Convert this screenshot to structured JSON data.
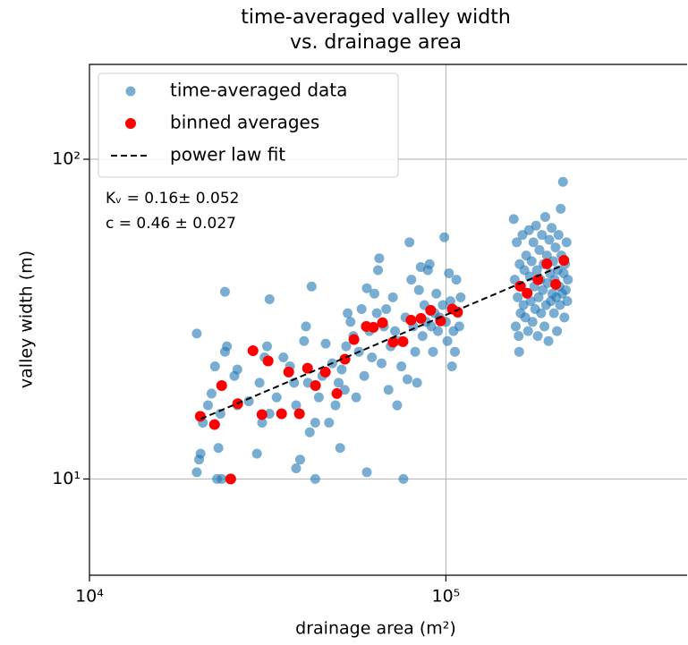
{
  "chart_data": {
    "type": "scatter",
    "title": [
      "time-averaged valley width",
      "vs. drainage area"
    ],
    "xlabel": "drainage area (m²)",
    "ylabel": "valley width (m)",
    "xscale": "log",
    "yscale": "log",
    "xlim": [
      10000,
      475000
    ],
    "ylim": [
      5,
      198
    ],
    "xticks": [
      {
        "value": 10000,
        "label": "10⁴"
      },
      {
        "value": 100000,
        "label": "10⁵"
      }
    ],
    "yticks": [
      {
        "value": 10,
        "label": "10¹"
      },
      {
        "value": 100,
        "label": "10²"
      }
    ],
    "grid": true,
    "legend": "upper left",
    "annotations": [
      "Kᵥ = 0.16± 0.052",
      "c = 0.46 ± 0.027"
    ],
    "series": [
      {
        "name": "time-averaged data",
        "color": "#1f77b4",
        "marker": "circle",
        "x": [
          20000,
          20000,
          20300,
          20500,
          20800,
          21500,
          22000,
          22500,
          22800,
          23000,
          23300,
          23500,
          24000,
          24000,
          24300,
          25000,
          25500,
          26000,
          26000,
          28000,
          29500,
          30000,
          30500,
          31000,
          31500,
          32000,
          32000,
          33500,
          35000,
          36500,
          37500,
          38000,
          38000,
          39000,
          40000,
          40500,
          41000,
          41500,
          42000,
          43000,
          43000,
          44000,
          45000,
          46000,
          47000,
          48000,
          49000,
          50000,
          50500,
          51000,
          52000,
          52500,
          53000,
          54000,
          55000,
          56000,
          57000,
          58000,
          59000,
          60000,
          60000,
          61000,
          62000,
          63000,
          64000,
          64500,
          65000,
          66000,
          67000,
          68000,
          69000,
          70000,
          71000,
          72000,
          73000,
          74000,
          75000,
          76000,
          77000,
          78000,
          79000,
          80000,
          81000,
          82000,
          83000,
          84000,
          85000,
          86000,
          87000,
          88000,
          89000,
          90000,
          91000,
          92000,
          93000,
          94000,
          95000,
          96000,
          98000,
          99000,
          100000,
          101000,
          102000,
          103000,
          104000,
          105000,
          106000,
          107000,
          108000,
          109000,
          110000,
          155000,
          156000,
          157000,
          158000,
          159000,
          160000,
          160500,
          161000,
          162000,
          163000,
          164000,
          165000,
          166000,
          167000,
          168000,
          169000,
          170000,
          171000,
          172000,
          173000,
          174000,
          175000,
          176000,
          177000,
          178000,
          179000,
          180000,
          181000,
          182000,
          183000,
          184000,
          185000,
          186000,
          187000,
          188000,
          189000,
          190000,
          191000,
          192000,
          193000,
          194000,
          195000,
          196000,
          197000,
          198000,
          199000,
          200000,
          201000,
          202000,
          203000,
          204000,
          205000,
          206000,
          207000,
          208000,
          209000,
          210000,
          211000,
          212000,
          213000,
          214000,
          215000,
          216000,
          217000,
          218000,
          219000,
          220000
        ],
        "values": [
          28.5,
          10.5,
          11.5,
          12,
          15,
          17,
          18.5,
          22.5,
          10,
          12.5,
          16,
          10,
          25,
          38.5,
          26,
          10,
          21,
          22,
          17,
          17.5,
          12,
          20,
          15,
          24,
          26,
          36.5,
          16,
          18,
          24,
          22.5,
          20,
          17,
          10.8,
          11.5,
          27,
          30,
          20,
          14,
          40,
          10,
          15,
          18,
          21,
          26.5,
          15,
          23,
          17,
          20,
          12.5,
          22,
          19,
          26,
          33,
          31,
          28,
          18,
          25,
          34,
          21,
          39.5,
          10.5,
          29,
          24,
          38,
          33,
          45,
          49,
          23,
          30,
          34,
          19,
          26,
          37,
          29,
          17,
          27,
          22.5,
          10,
          32,
          20.5,
          55,
          42,
          30,
          25,
          20,
          39,
          46,
          28,
          35,
          31,
          45,
          47,
          30,
          25,
          33,
          38,
          29,
          32,
          35,
          57,
          31,
          27,
          44,
          36,
          22.5,
          29,
          25,
          42,
          33,
          30,
          37,
          65,
          42,
          30,
          55,
          37,
          28,
          25,
          47,
          33,
          40,
          58,
          35,
          45,
          32,
          50,
          38,
          29,
          60,
          43,
          36,
          48,
          31,
          55,
          40,
          34,
          62,
          45,
          28,
          37,
          52,
          42,
          33,
          58,
          39,
          47,
          30,
          66,
          35,
          50,
          41,
          27,
          56,
          44,
          36,
          61,
          38,
          48,
          33,
          42,
          53,
          37,
          29,
          45,
          58,
          40,
          35,
          70,
          50,
          38,
          85,
          44,
          32,
          47,
          39,
          55,
          36,
          42
        ]
      },
      {
        "name": "binned averages",
        "color": "#ff0000",
        "marker": "circle",
        "x": [
          20460,
          22430,
          23490,
          24890,
          26060,
          28760,
          30470,
          31710,
          34590,
          36220,
          38810,
          40900,
          43060,
          45900,
          49450,
          52100,
          55200,
          59800,
          62600,
          66400,
          71100,
          75800,
          79800,
          85100,
          90600,
          96600,
          104200,
          107800,
          161500,
          169000,
          181200,
          192000,
          203300,
          214300
        ],
        "values": [
          15.7,
          14.8,
          19.6,
          10.0,
          17.2,
          25.2,
          15.9,
          23.4,
          16.0,
          21.6,
          16.0,
          22.2,
          19.6,
          21.6,
          18.5,
          23.7,
          27.3,
          30.0,
          29.8,
          30.8,
          26.8,
          26.9,
          31.4,
          31.8,
          33.7,
          31.2,
          34.0,
          33.3,
          40.1,
          38.1,
          42.0,
          47.1,
          40.6,
          48.3
        ]
      },
      {
        "name": "power law fit",
        "color": "#000000",
        "marker": "dashed-line",
        "x": [
          20500,
          213000
        ],
        "values": [
          15.4,
          46.6
        ]
      }
    ]
  }
}
